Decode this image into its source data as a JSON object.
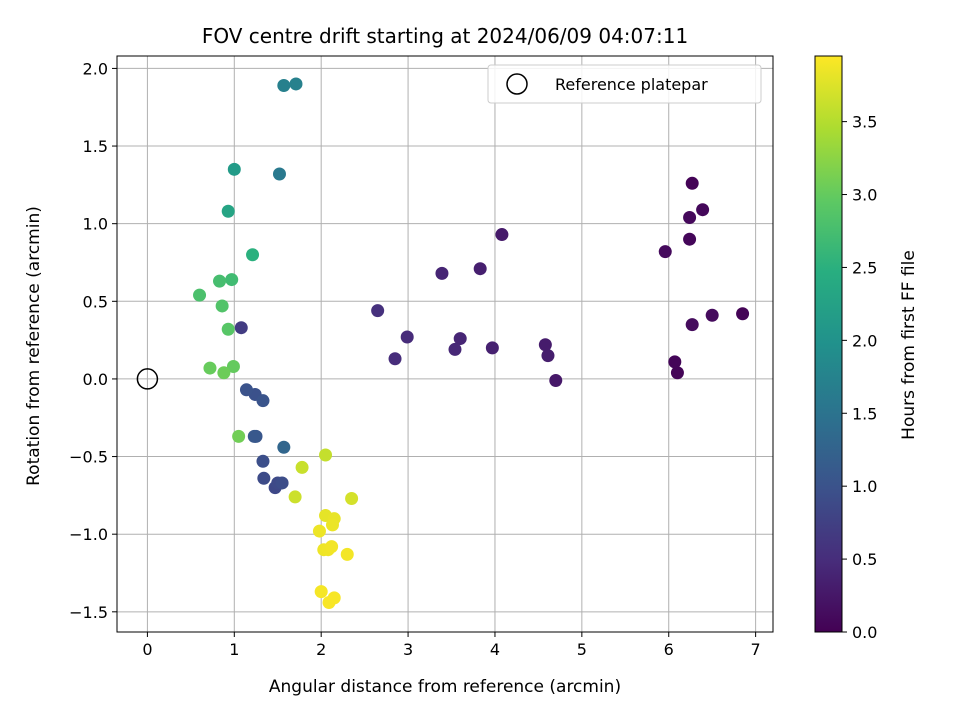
{
  "chart_data": {
    "type": "scatter",
    "title": "FOV centre drift starting at 2024/06/09 04:07:11",
    "xlabel": "Angular distance from reference (arcmin)",
    "ylabel": "Rotation from reference (arcmin)",
    "colorbar_label": "Hours from first FF file",
    "xlim": [
      -0.35,
      7.2
    ],
    "ylim": [
      -1.63,
      2.08
    ],
    "clim": [
      0.0,
      3.95
    ],
    "xticks": [
      0,
      1,
      2,
      3,
      4,
      5,
      6,
      7
    ],
    "yticks": [
      -1.5,
      -1.0,
      -0.5,
      0.0,
      0.5,
      1.0,
      1.5,
      2.0
    ],
    "ctick_values": [
      0.0,
      0.5,
      1.0,
      1.5,
      2.0,
      2.5,
      3.0,
      3.5
    ],
    "xtick_labels": [
      "0",
      "1",
      "2",
      "3",
      "4",
      "5",
      "6",
      "7"
    ],
    "ytick_labels": [
      "−1.5",
      "−1.0",
      "−0.5",
      "0.0",
      "0.5",
      "1.0",
      "1.5",
      "2.0"
    ],
    "ctick_labels": [
      "0.0",
      "0.5",
      "1.0",
      "1.5",
      "2.0",
      "2.5",
      "3.0",
      "3.5"
    ],
    "grid": true,
    "legend_position": "top-right",
    "colormap": "viridis",
    "reference": {
      "x": 0,
      "y": 0,
      "label": "Reference platepar"
    },
    "points": [
      {
        "x": 6.27,
        "y": 1.26,
        "t": 0.02
      },
      {
        "x": 6.85,
        "y": 0.42,
        "t": 0.03
      },
      {
        "x": 6.1,
        "y": 0.04,
        "t": 0.04
      },
      {
        "x": 6.07,
        "y": 0.11,
        "t": 0.05
      },
      {
        "x": 6.24,
        "y": 0.9,
        "t": 0.06
      },
      {
        "x": 6.39,
        "y": 1.09,
        "t": 0.08
      },
      {
        "x": 6.24,
        "y": 1.04,
        "t": 0.09
      },
      {
        "x": 5.96,
        "y": 0.82,
        "t": 0.1
      },
      {
        "x": 6.5,
        "y": 0.41,
        "t": 0.11
      },
      {
        "x": 6.27,
        "y": 0.35,
        "t": 0.12
      },
      {
        "x": 4.7,
        "y": -0.01,
        "t": 0.26
      },
      {
        "x": 4.08,
        "y": 0.93,
        "t": 0.28
      },
      {
        "x": 4.58,
        "y": 0.22,
        "t": 0.3
      },
      {
        "x": 4.61,
        "y": 0.15,
        "t": 0.32
      },
      {
        "x": 3.83,
        "y": 0.71,
        "t": 0.34
      },
      {
        "x": 3.97,
        "y": 0.2,
        "t": 0.36
      },
      {
        "x": 3.39,
        "y": 0.68,
        "t": 0.4
      },
      {
        "x": 3.6,
        "y": 0.26,
        "t": 0.42
      },
      {
        "x": 3.54,
        "y": 0.19,
        "t": 0.44
      },
      {
        "x": 2.99,
        "y": 0.27,
        "t": 0.48
      },
      {
        "x": 2.85,
        "y": 0.13,
        "t": 0.5
      },
      {
        "x": 2.65,
        "y": 0.44,
        "t": 0.55
      },
      {
        "x": 1.08,
        "y": 0.33,
        "t": 0.7
      },
      {
        "x": 1.47,
        "y": -0.7,
        "t": 0.85
      },
      {
        "x": 1.5,
        "y": -0.67,
        "t": 0.88
      },
      {
        "x": 1.34,
        "y": -0.64,
        "t": 0.9
      },
      {
        "x": 1.55,
        "y": -0.67,
        "t": 0.92
      },
      {
        "x": 1.33,
        "y": -0.53,
        "t": 0.95
      },
      {
        "x": 1.24,
        "y": -0.1,
        "t": 0.98
      },
      {
        "x": 1.14,
        "y": -0.07,
        "t": 1.0
      },
      {
        "x": 1.33,
        "y": -0.14,
        "t": 1.02
      },
      {
        "x": 1.25,
        "y": -0.37,
        "t": 1.05
      },
      {
        "x": 1.23,
        "y": -0.37,
        "t": 1.08
      },
      {
        "x": 1.57,
        "y": -0.44,
        "t": 1.3
      },
      {
        "x": 1.52,
        "y": 1.32,
        "t": 1.6
      },
      {
        "x": 1.57,
        "y": 1.89,
        "t": 1.7
      },
      {
        "x": 1.71,
        "y": 1.9,
        "t": 1.72
      },
      {
        "x": 1.0,
        "y": 1.35,
        "t": 2.15
      },
      {
        "x": 0.93,
        "y": 1.08,
        "t": 2.3
      },
      {
        "x": 1.21,
        "y": 0.8,
        "t": 2.5
      },
      {
        "x": 0.97,
        "y": 0.64,
        "t": 2.7
      },
      {
        "x": 0.83,
        "y": 0.63,
        "t": 2.75
      },
      {
        "x": 0.6,
        "y": 0.54,
        "t": 2.8
      },
      {
        "x": 0.86,
        "y": 0.47,
        "t": 2.85
      },
      {
        "x": 0.93,
        "y": 0.32,
        "t": 2.9
      },
      {
        "x": 0.99,
        "y": 0.08,
        "t": 3.0
      },
      {
        "x": 0.72,
        "y": 0.07,
        "t": 3.02
      },
      {
        "x": 0.88,
        "y": 0.04,
        "t": 3.05
      },
      {
        "x": 1.05,
        "y": -0.37,
        "t": 3.08
      },
      {
        "x": 2.05,
        "y": -0.49,
        "t": 3.6
      },
      {
        "x": 1.78,
        "y": -0.57,
        "t": 3.62
      },
      {
        "x": 1.7,
        "y": -0.76,
        "t": 3.65
      },
      {
        "x": 2.35,
        "y": -0.77,
        "t": 3.7
      },
      {
        "x": 2.05,
        "y": -0.88,
        "t": 3.8
      },
      {
        "x": 2.15,
        "y": -0.9,
        "t": 3.82
      },
      {
        "x": 2.13,
        "y": -0.94,
        "t": 3.84
      },
      {
        "x": 1.98,
        "y": -0.98,
        "t": 3.85
      },
      {
        "x": 2.03,
        "y": -1.1,
        "t": 3.86
      },
      {
        "x": 2.08,
        "y": -1.1,
        "t": 3.87
      },
      {
        "x": 2.12,
        "y": -1.08,
        "t": 3.88
      },
      {
        "x": 2.3,
        "y": -1.13,
        "t": 3.89
      },
      {
        "x": 2.0,
        "y": -1.37,
        "t": 3.9
      },
      {
        "x": 2.15,
        "y": -1.41,
        "t": 3.91
      },
      {
        "x": 2.09,
        "y": -1.44,
        "t": 3.92
      }
    ]
  }
}
